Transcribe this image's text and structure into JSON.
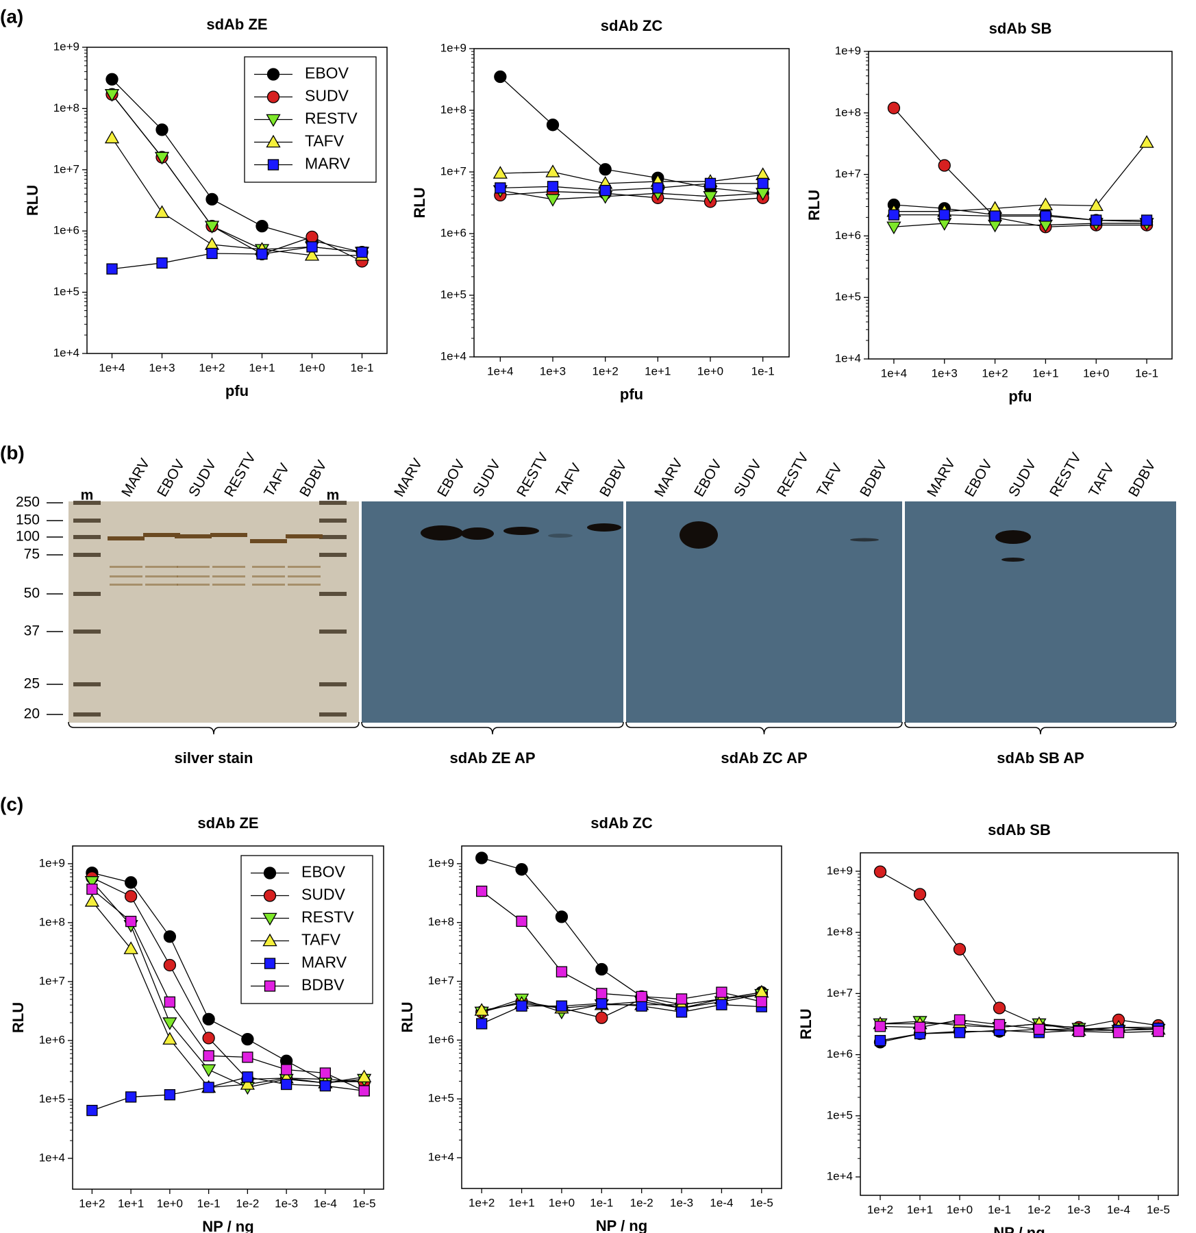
{
  "panel_labels": [
    "(a)",
    "(b)",
    "(c)"
  ],
  "chart_data": [
    {
      "type": "line",
      "title": "sdAb ZE",
      "x_label": "pfu",
      "y_label": "RLU",
      "log_y": true,
      "legend": "upper right",
      "categories": [
        "1e+4",
        "1e+3",
        "1e+2",
        "1e+1",
        "1e+0",
        "1e-1"
      ],
      "ylim": [
        10000,
        1000000000
      ],
      "yticks": [
        {
          "value": 10000,
          "label": "1e+4"
        },
        {
          "value": 100000,
          "label": "1e+5"
        },
        {
          "value": 1000000,
          "label": "1e+6"
        },
        {
          "value": 10000000,
          "label": "1e+7"
        },
        {
          "value": 100000000,
          "label": "1e+8"
        },
        {
          "value": 1000000000,
          "label": "1e+9"
        }
      ],
      "series": [
        {
          "name": "EBOV",
          "color": "#000000",
          "marker": "circle",
          "values": [
            300000000,
            45000000,
            3300000,
            1200000,
            700000,
            450000
          ]
        },
        {
          "name": "SUDV",
          "color": "#d62020",
          "marker": "circle",
          "values": [
            170000000,
            16000000,
            1200000,
            420000,
            800000,
            320000
          ]
        },
        {
          "name": "RESTV",
          "color": "#7ee82a",
          "marker": "triangle-down",
          "values": [
            170000000,
            16000000,
            1200000,
            500000,
            550000,
            450000
          ]
        },
        {
          "name": "TAFV",
          "color": "#f5f03c",
          "marker": "triangle-up",
          "values": [
            33000000,
            2000000,
            600000,
            500000,
            400000,
            400000
          ]
        },
        {
          "name": "MARV",
          "color": "#1a1aff",
          "marker": "square",
          "values": [
            240000,
            300000,
            430000,
            420000,
            550000,
            450000
          ]
        }
      ]
    },
    {
      "type": "line",
      "title": "sdAb ZC",
      "x_label": "pfu",
      "y_label": "RLU",
      "log_y": true,
      "categories": [
        "1e+4",
        "1e+3",
        "1e+2",
        "1e+1",
        "1e+0",
        "1e-1"
      ],
      "ylim": [
        10000,
        1000000000
      ],
      "yticks": [
        {
          "value": 10000,
          "label": "1e+4"
        },
        {
          "value": 100000,
          "label": "1e+5"
        },
        {
          "value": 1000000,
          "label": "1e+6"
        },
        {
          "value": 10000000,
          "label": "1e+7"
        },
        {
          "value": 100000000,
          "label": "1e+8"
        },
        {
          "value": 1000000000,
          "label": "1e+9"
        }
      ],
      "series": [
        {
          "name": "EBOV",
          "color": "#000000",
          "marker": "circle",
          "values": [
            350000000,
            58000000,
            11000000,
            8000000,
            5500000,
            4500000
          ]
        },
        {
          "name": "SUDV",
          "color": "#d62020",
          "marker": "circle",
          "values": [
            4200000,
            4800000,
            4500000,
            3800000,
            3300000,
            3800000
          ]
        },
        {
          "name": "RESTV",
          "color": "#7ee82a",
          "marker": "triangle-down",
          "values": [
            5000000,
            3600000,
            4000000,
            4500000,
            4000000,
            4500000
          ]
        },
        {
          "name": "TAFV",
          "color": "#f5f03c",
          "marker": "triangle-up",
          "values": [
            9500000,
            10000000,
            6500000,
            7000000,
            7000000,
            9000000
          ]
        },
        {
          "name": "MARV",
          "color": "#1a1aff",
          "marker": "square",
          "values": [
            5500000,
            5800000,
            5000000,
            5500000,
            6500000,
            6500000
          ]
        }
      ]
    },
    {
      "type": "line",
      "title": "sdAb SB",
      "x_label": "pfu",
      "y_label": "RLU",
      "log_y": true,
      "categories": [
        "1e+4",
        "1e+3",
        "1e+2",
        "1e+1",
        "1e+0",
        "1e-1"
      ],
      "ylim": [
        10000,
        1000000000
      ],
      "yticks": [
        {
          "value": 10000,
          "label": "1e+4"
        },
        {
          "value": 100000,
          "label": "1e+5"
        },
        {
          "value": 1000000,
          "label": "1e+6"
        },
        {
          "value": 10000000,
          "label": "1e+7"
        },
        {
          "value": 100000000,
          "label": "1e+8"
        },
        {
          "value": 1000000000,
          "label": "1e+9"
        }
      ],
      "series": [
        {
          "name": "EBOV",
          "color": "#000000",
          "marker": "circle",
          "values": [
            3200000,
            2800000,
            2200000,
            2200000,
            1800000,
            1700000
          ]
        },
        {
          "name": "SUDV",
          "color": "#d62020",
          "marker": "circle",
          "values": [
            120000000,
            14000000,
            2000000,
            1400000,
            1500000,
            1500000
          ]
        },
        {
          "name": "RESTV",
          "color": "#7ee82a",
          "marker": "triangle-down",
          "values": [
            1400000,
            1600000,
            1500000,
            1500000,
            1600000,
            1600000
          ]
        },
        {
          "name": "TAFV",
          "color": "#f5f03c",
          "marker": "triangle-up",
          "values": [
            2500000,
            2500000,
            2800000,
            3200000,
            3100000,
            33000000
          ]
        },
        {
          "name": "MARV",
          "color": "#1a1aff",
          "marker": "square",
          "values": [
            2200000,
            2200000,
            2100000,
            2100000,
            1800000,
            1800000
          ]
        }
      ]
    },
    {
      "type": "line",
      "title": "sdAb ZE",
      "x_label": "NP / ng",
      "y_label": "RLU",
      "log_y": true,
      "legend": "upper right",
      "categories": [
        "1e+2",
        "1e+1",
        "1e+0",
        "1e-1",
        "1e-2",
        "1e-3",
        "1e-4",
        "1e-5"
      ],
      "ylim": [
        3000,
        2000000000
      ],
      "yticks": [
        {
          "value": 10000,
          "label": "1e+4"
        },
        {
          "value": 100000,
          "label": "1e+5"
        },
        {
          "value": 1000000,
          "label": "1e+6"
        },
        {
          "value": 10000000,
          "label": "1e+7"
        },
        {
          "value": 100000000,
          "label": "1e+8"
        },
        {
          "value": 1000000000,
          "label": "1e+9"
        }
      ],
      "series": [
        {
          "name": "EBOV",
          "color": "#000000",
          "marker": "circle",
          "values": [
            700000000,
            480000000,
            58000000,
            2300000,
            1050000,
            450000,
            200000,
            200000
          ]
        },
        {
          "name": "SUDV",
          "color": "#d62020",
          "marker": "circle",
          "values": [
            580000000,
            280000000,
            19000000,
            1100000,
            220000,
            230000,
            220000,
            200000
          ]
        },
        {
          "name": "RESTV",
          "color": "#7ee82a",
          "marker": "triangle-down",
          "values": [
            500000000,
            90000000,
            2000000,
            320000,
            160000,
            220000,
            190000,
            220000
          ]
        },
        {
          "name": "TAFV",
          "color": "#f5f03c",
          "marker": "triangle-up",
          "values": [
            230000000,
            36000000,
            1050000,
            160000,
            180000,
            230000,
            190000,
            240000
          ]
        },
        {
          "name": "MARV",
          "color": "#1a1aff",
          "marker": "square",
          "values": [
            65000,
            110000,
            120000,
            160000,
            240000,
            180000,
            170000,
            140000
          ]
        },
        {
          "name": "BDBV",
          "color": "#e020e0",
          "marker": "square",
          "values": [
            370000000,
            105000000,
            4500000,
            550000,
            520000,
            320000,
            280000,
            140000
          ]
        }
      ]
    },
    {
      "type": "line",
      "title": "sdAb ZC",
      "x_label": "NP / ng",
      "y_label": "RLU",
      "log_y": true,
      "categories": [
        "1e+2",
        "1e+1",
        "1e+0",
        "1e-1",
        "1e-2",
        "1e-3",
        "1e-4",
        "1e-5"
      ],
      "ylim": [
        3000,
        2000000000
      ],
      "yticks": [
        {
          "value": 10000,
          "label": "1e+4"
        },
        {
          "value": 100000,
          "label": "1e+5"
        },
        {
          "value": 1000000,
          "label": "1e+6"
        },
        {
          "value": 10000000,
          "label": "1e+7"
        },
        {
          "value": 100000000,
          "label": "1e+8"
        },
        {
          "value": 1000000000,
          "label": "1e+9"
        }
      ],
      "series": [
        {
          "name": "EBOV",
          "color": "#000000",
          "marker": "circle",
          "values": [
            1250000000,
            800000000,
            125000000,
            16000000,
            5500000,
            4000000,
            5000000,
            6500000
          ]
        },
        {
          "name": "SUDV",
          "color": "#d62020",
          "marker": "circle",
          "values": [
            3000000,
            4500000,
            3500000,
            2400000,
            5000000,
            3500000,
            5000000,
            6000000
          ]
        },
        {
          "name": "RESTV",
          "color": "#7ee82a",
          "marker": "triangle-down",
          "values": [
            3000000,
            5000000,
            3000000,
            4000000,
            4500000,
            3500000,
            4500000,
            6000000
          ]
        },
        {
          "name": "TAFV",
          "color": "#f5f03c",
          "marker": "triangle-up",
          "values": [
            3200000,
            4200000,
            3500000,
            4000000,
            4000000,
            4000000,
            5000000,
            6500000
          ]
        },
        {
          "name": "MARV",
          "color": "#1a1aff",
          "marker": "square",
          "values": [
            1900000,
            3800000,
            3800000,
            4200000,
            3800000,
            3000000,
            4000000,
            3700000
          ]
        },
        {
          "name": "BDBV",
          "color": "#e020e0",
          "marker": "square",
          "values": [
            340000000,
            105000000,
            14500000,
            6200000,
            5500000,
            5000000,
            6500000,
            4500000
          ]
        }
      ]
    },
    {
      "type": "line",
      "title": "sdAb SB",
      "x_label": "NP / ng",
      "y_label": "RLU",
      "log_y": true,
      "categories": [
        "1e+2",
        "1e+1",
        "1e+0",
        "1e-1",
        "1e-2",
        "1e-3",
        "1e-4",
        "1e-5"
      ],
      "ylim": [
        5000,
        2000000000
      ],
      "yticks": [
        {
          "value": 10000,
          "label": "1e+4"
        },
        {
          "value": 100000,
          "label": "1e+5"
        },
        {
          "value": 1000000,
          "label": "1e+6"
        },
        {
          "value": 10000000,
          "label": "1e+7"
        },
        {
          "value": 100000000,
          "label": "1e+8"
        },
        {
          "value": 1000000000,
          "label": "1e+9"
        }
      ],
      "series": [
        {
          "name": "EBOV",
          "color": "#000000",
          "marker": "circle",
          "values": [
            1600000,
            2200000,
            2400000,
            2400000,
            2600000,
            2600000,
            2800000,
            2800000
          ]
        },
        {
          "name": "SUDV",
          "color": "#d62020",
          "marker": "circle",
          "values": [
            980000000,
            420000000,
            53000000,
            5800000,
            3000000,
            2800000,
            3700000,
            3000000
          ]
        },
        {
          "name": "RESTV",
          "color": "#7ee82a",
          "marker": "triangle-down",
          "values": [
            3200000,
            3500000,
            3000000,
            2800000,
            3200000,
            2700000,
            2500000,
            2600000
          ]
        },
        {
          "name": "TAFV",
          "color": "#f5f03c",
          "marker": "triangle-up",
          "values": [
            3200000,
            3200000,
            3300000,
            2800000,
            3200000,
            2500000,
            2800000,
            2600000
          ]
        },
        {
          "name": "MARV",
          "color": "#1a1aff",
          "marker": "square",
          "values": [
            1700000,
            2200000,
            2300000,
            2500000,
            2300000,
            2500000,
            2500000,
            2700000
          ]
        },
        {
          "name": "BDBV",
          "color": "#e020e0",
          "marker": "square",
          "values": [
            2900000,
            2800000,
            3700000,
            3100000,
            2600000,
            2400000,
            2300000,
            2400000
          ]
        }
      ]
    }
  ],
  "blot": {
    "markers": [
      250,
      150,
      100,
      75,
      50,
      37,
      25,
      20
    ],
    "groups": [
      {
        "caption": "silver stain",
        "lanes": [
          "m",
          "MARV",
          "EBOV",
          "SUDV",
          "RESTV",
          "TAFV",
          "BDBV",
          "m"
        ]
      },
      {
        "caption": "sdAb ZE AP",
        "lanes": [
          "MARV",
          "EBOV",
          "SUDV",
          "RESTV",
          "TAFV",
          "BDBV"
        ]
      },
      {
        "caption": "sdAb ZC AP",
        "lanes": [
          "MARV",
          "EBOV",
          "SUDV",
          "RESTV",
          "TAFV",
          "BDBV"
        ]
      },
      {
        "caption": "sdAb SB AP",
        "lanes": [
          "MARV",
          "EBOV",
          "SUDV",
          "RESTV",
          "TAFV",
          "BDBV"
        ]
      }
    ]
  }
}
